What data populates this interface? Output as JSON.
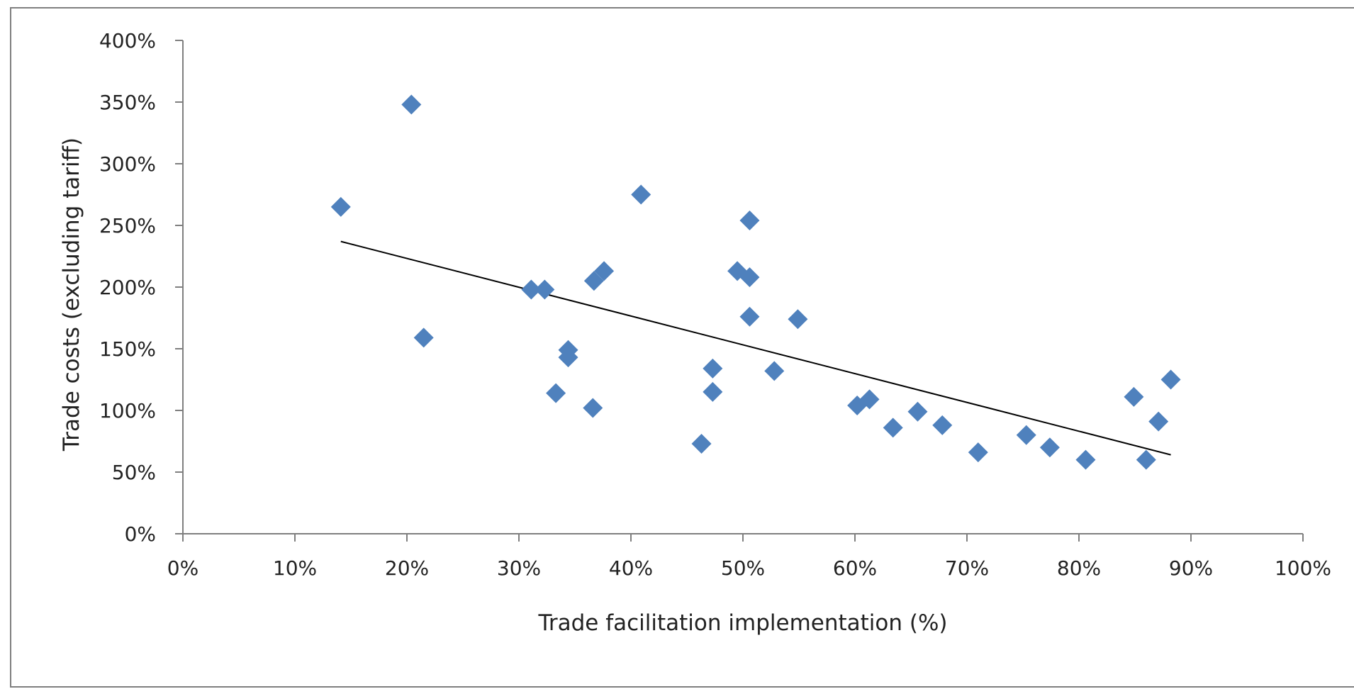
{
  "chart_data": {
    "type": "scatter",
    "title": "",
    "xlabel": "Trade facilitation implementation (%)",
    "ylabel": "Trade costs (excluding  tariff)",
    "xlim": [
      0,
      100
    ],
    "ylim": [
      0,
      400
    ],
    "x_ticks": [
      0,
      10,
      20,
      30,
      40,
      50,
      60,
      70,
      80,
      90,
      100
    ],
    "y_ticks": [
      0,
      50,
      100,
      150,
      200,
      250,
      300,
      350,
      400
    ],
    "x_tick_labels": [
      "0%",
      "10%",
      "20%",
      "30%",
      "40%",
      "50%",
      "60%",
      "70%",
      "80%",
      "90%",
      "100%"
    ],
    "y_tick_labels": [
      "0%",
      "50%",
      "100%",
      "150%",
      "200%",
      "250%",
      "300%",
      "350%",
      "400%"
    ],
    "grid": false,
    "legend": "none",
    "marker": "diamond",
    "marker_color": "#4f81bd",
    "trendline_color": "#000000",
    "series": [
      {
        "points": [
          [
            14.1,
            265
          ],
          [
            20.4,
            348
          ],
          [
            21.5,
            159
          ],
          [
            31.1,
            198
          ],
          [
            32.3,
            198
          ],
          [
            33.3,
            114
          ],
          [
            34.4,
            149
          ],
          [
            34.4,
            143
          ],
          [
            36.6,
            102
          ],
          [
            36.7,
            205
          ],
          [
            37.6,
            213
          ],
          [
            40.9,
            275
          ],
          [
            46.3,
            73
          ],
          [
            47.3,
            134
          ],
          [
            47.3,
            115
          ],
          [
            49.5,
            213
          ],
          [
            50.6,
            254
          ],
          [
            50.6,
            208
          ],
          [
            50.6,
            176
          ],
          [
            52.8,
            132
          ],
          [
            54.9,
            174
          ],
          [
            60.2,
            104
          ],
          [
            61.3,
            109
          ],
          [
            63.4,
            86
          ],
          [
            65.6,
            99
          ],
          [
            67.8,
            88
          ],
          [
            71.0,
            66
          ],
          [
            75.3,
            80
          ],
          [
            77.4,
            70
          ],
          [
            80.6,
            60
          ],
          [
            84.9,
            111
          ],
          [
            86.0,
            60
          ],
          [
            87.1,
            91
          ],
          [
            88.2,
            125
          ]
        ]
      }
    ],
    "trendline": {
      "x": [
        14.1,
        88.2
      ],
      "y": [
        237,
        64
      ]
    }
  }
}
